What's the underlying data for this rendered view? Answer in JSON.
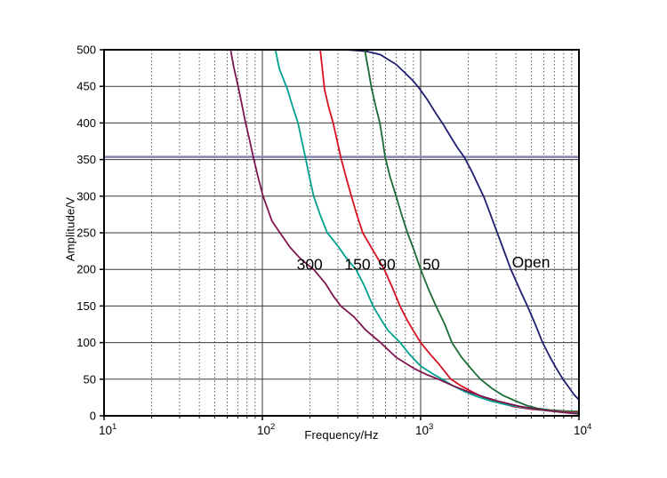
{
  "figure": {
    "background": "#ffffff",
    "text_color": "#000000",
    "grid_major_color": "#3a3a3a",
    "grid_minor_color": "#5a5a5a",
    "border_color": "#000000"
  },
  "chart_data": {
    "type": "line",
    "title": "",
    "xlabel": "Frequency/Hz",
    "ylabel": "Amplitude/V",
    "x_scale": "log",
    "xlim": [
      10,
      10000
    ],
    "ylim": [
      0,
      500
    ],
    "grid": {
      "major": true,
      "minor_vertical_dotted": true
    },
    "legend_position": "none",
    "x_ticks": [
      {
        "base": "10",
        "exp": "1"
      },
      {
        "base": "10",
        "exp": "2"
      },
      {
        "base": "10",
        "exp": "3"
      },
      {
        "base": "10",
        "exp": "4"
      }
    ],
    "y_ticks": [
      0,
      50,
      100,
      150,
      200,
      250,
      300,
      350,
      400,
      450,
      500
    ],
    "marker_line": {
      "y": 353.6,
      "color": "#8585b2",
      "width": 2.5,
      "meaning": "horizontal reference line just above 350 V"
    },
    "series": [
      {
        "name": "Open",
        "color": "#1f1f70",
        "points": [
          [
            10,
            500
          ],
          [
            250,
            500
          ],
          [
            340,
            500
          ],
          [
            390,
            499
          ],
          [
            450,
            498
          ],
          [
            520,
            495
          ],
          [
            560,
            493
          ],
          [
            630,
            486
          ],
          [
            700,
            480
          ],
          [
            800,
            468
          ],
          [
            900,
            457
          ],
          [
            975,
            448
          ],
          [
            1100,
            432
          ],
          [
            1250,
            413
          ],
          [
            1380,
            399
          ],
          [
            1550,
            381
          ],
          [
            1700,
            367
          ],
          [
            1890,
            353
          ],
          [
            2100,
            334
          ],
          [
            2300,
            316
          ],
          [
            2520,
            298
          ],
          [
            2750,
            276
          ],
          [
            3000,
            254
          ],
          [
            3300,
            230
          ],
          [
            3700,
            201
          ],
          [
            4200,
            174
          ],
          [
            4720,
            150
          ],
          [
            5300,
            125
          ],
          [
            5890,
            100
          ],
          [
            6500,
            82
          ],
          [
            7100,
            67
          ],
          [
            7925,
            50
          ],
          [
            8700,
            38
          ],
          [
            9300,
            29
          ],
          [
            10000,
            22
          ]
        ]
      },
      {
        "name": "50",
        "color": "#1a6b35",
        "points": [
          [
            240,
            500
          ],
          [
            443,
            500
          ],
          [
            470,
            470
          ],
          [
            491,
            446
          ],
          [
            520,
            423
          ],
          [
            552,
            400
          ],
          [
            575,
            377
          ],
          [
            597,
            353
          ],
          [
            640,
            327
          ],
          [
            700,
            300
          ],
          [
            760,
            274
          ],
          [
            826,
            250
          ],
          [
            905,
            227
          ],
          [
            1000,
            200
          ],
          [
            1120,
            173
          ],
          [
            1250,
            150
          ],
          [
            1420,
            125
          ],
          [
            1576,
            100
          ],
          [
            1800,
            81
          ],
          [
            2090,
            64
          ],
          [
            2385,
            50
          ],
          [
            2800,
            38
          ],
          [
            3300,
            28
          ],
          [
            4000,
            20
          ],
          [
            4700,
            14
          ],
          [
            5500,
            10
          ],
          [
            6500,
            8
          ],
          [
            8000,
            6.5
          ],
          [
            10000,
            6
          ]
        ]
      },
      {
        "name": "90",
        "color": "#d8101f",
        "points": [
          [
            130,
            500
          ],
          [
            232,
            500
          ],
          [
            240,
            471
          ],
          [
            247,
            446
          ],
          [
            262,
            422
          ],
          [
            280,
            400
          ],
          [
            296,
            377
          ],
          [
            313,
            353
          ],
          [
            338,
            326
          ],
          [
            365,
            300
          ],
          [
            396,
            274
          ],
          [
            431,
            250
          ],
          [
            500,
            226
          ],
          [
            589,
            200
          ],
          [
            660,
            176
          ],
          [
            740,
            150
          ],
          [
            820,
            131
          ],
          [
            900,
            116
          ],
          [
            1000,
            100
          ],
          [
            1150,
            84
          ],
          [
            1300,
            71
          ],
          [
            1553,
            50
          ],
          [
            1800,
            41
          ],
          [
            2100,
            33
          ],
          [
            2500,
            25
          ],
          [
            3000,
            19
          ],
          [
            3800,
            13
          ],
          [
            5000,
            9
          ],
          [
            6500,
            7
          ],
          [
            8000,
            5.5
          ],
          [
            10000,
            4.5
          ]
        ]
      },
      {
        "name": "150",
        "color": "#00a28f",
        "points": [
          [
            75,
            500
          ],
          [
            121,
            500
          ],
          [
            128,
            474
          ],
          [
            144,
            446
          ],
          [
            155,
            423
          ],
          [
            168,
            400
          ],
          [
            177,
            377
          ],
          [
            187,
            353
          ],
          [
            198,
            327
          ],
          [
            211,
            300
          ],
          [
            232,
            274
          ],
          [
            257,
            250
          ],
          [
            300,
            232
          ],
          [
            340,
            215
          ],
          [
            390,
            200
          ],
          [
            440,
            178
          ],
          [
            500,
            150
          ],
          [
            560,
            132
          ],
          [
            620,
            117
          ],
          [
            743,
            100
          ],
          [
            850,
            84
          ],
          [
            1000,
            68
          ],
          [
            1200,
            57
          ],
          [
            1365,
            50
          ],
          [
            1600,
            41
          ],
          [
            1900,
            33
          ],
          [
            2300,
            26
          ],
          [
            2800,
            20
          ],
          [
            3500,
            15
          ],
          [
            4500,
            11
          ],
          [
            6000,
            7.5
          ],
          [
            8000,
            5
          ],
          [
            10000,
            3.5
          ]
        ]
      },
      {
        "name": "300",
        "color": "#7e1550",
        "points": [
          [
            63,
            500
          ],
          [
            66,
            476
          ],
          [
            70,
            452
          ],
          [
            74,
            427
          ],
          [
            78,
            402
          ],
          [
            83,
            377
          ],
          [
            88,
            352
          ],
          [
            94,
            326
          ],
          [
            101,
            300
          ],
          [
            115,
            266
          ],
          [
            131,
            248
          ],
          [
            150,
            230
          ],
          [
            175,
            214
          ],
          [
            211,
            200
          ],
          [
            250,
            181
          ],
          [
            280,
            164
          ],
          [
            313,
            150
          ],
          [
            380,
            135
          ],
          [
            450,
            117
          ],
          [
            558,
            100
          ],
          [
            700,
            80
          ],
          [
            900,
            65
          ],
          [
            1100,
            56
          ],
          [
            1295,
            50
          ],
          [
            1600,
            41
          ],
          [
            2000,
            33
          ],
          [
            2500,
            26
          ],
          [
            3200,
            19
          ],
          [
            4200,
            13
          ],
          [
            5500,
            9
          ],
          [
            7000,
            6
          ],
          [
            8500,
            4
          ],
          [
            10000,
            2.5
          ]
        ]
      }
    ],
    "annotations": [
      {
        "text": "300",
        "f": 199,
        "v": 207
      },
      {
        "text": "150",
        "f": 399,
        "v": 207
      },
      {
        "text": "90",
        "f": 612,
        "v": 207
      },
      {
        "text": "50",
        "f": 1167,
        "v": 207
      },
      {
        "text": "Open",
        "f": 4977,
        "v": 210
      }
    ]
  }
}
